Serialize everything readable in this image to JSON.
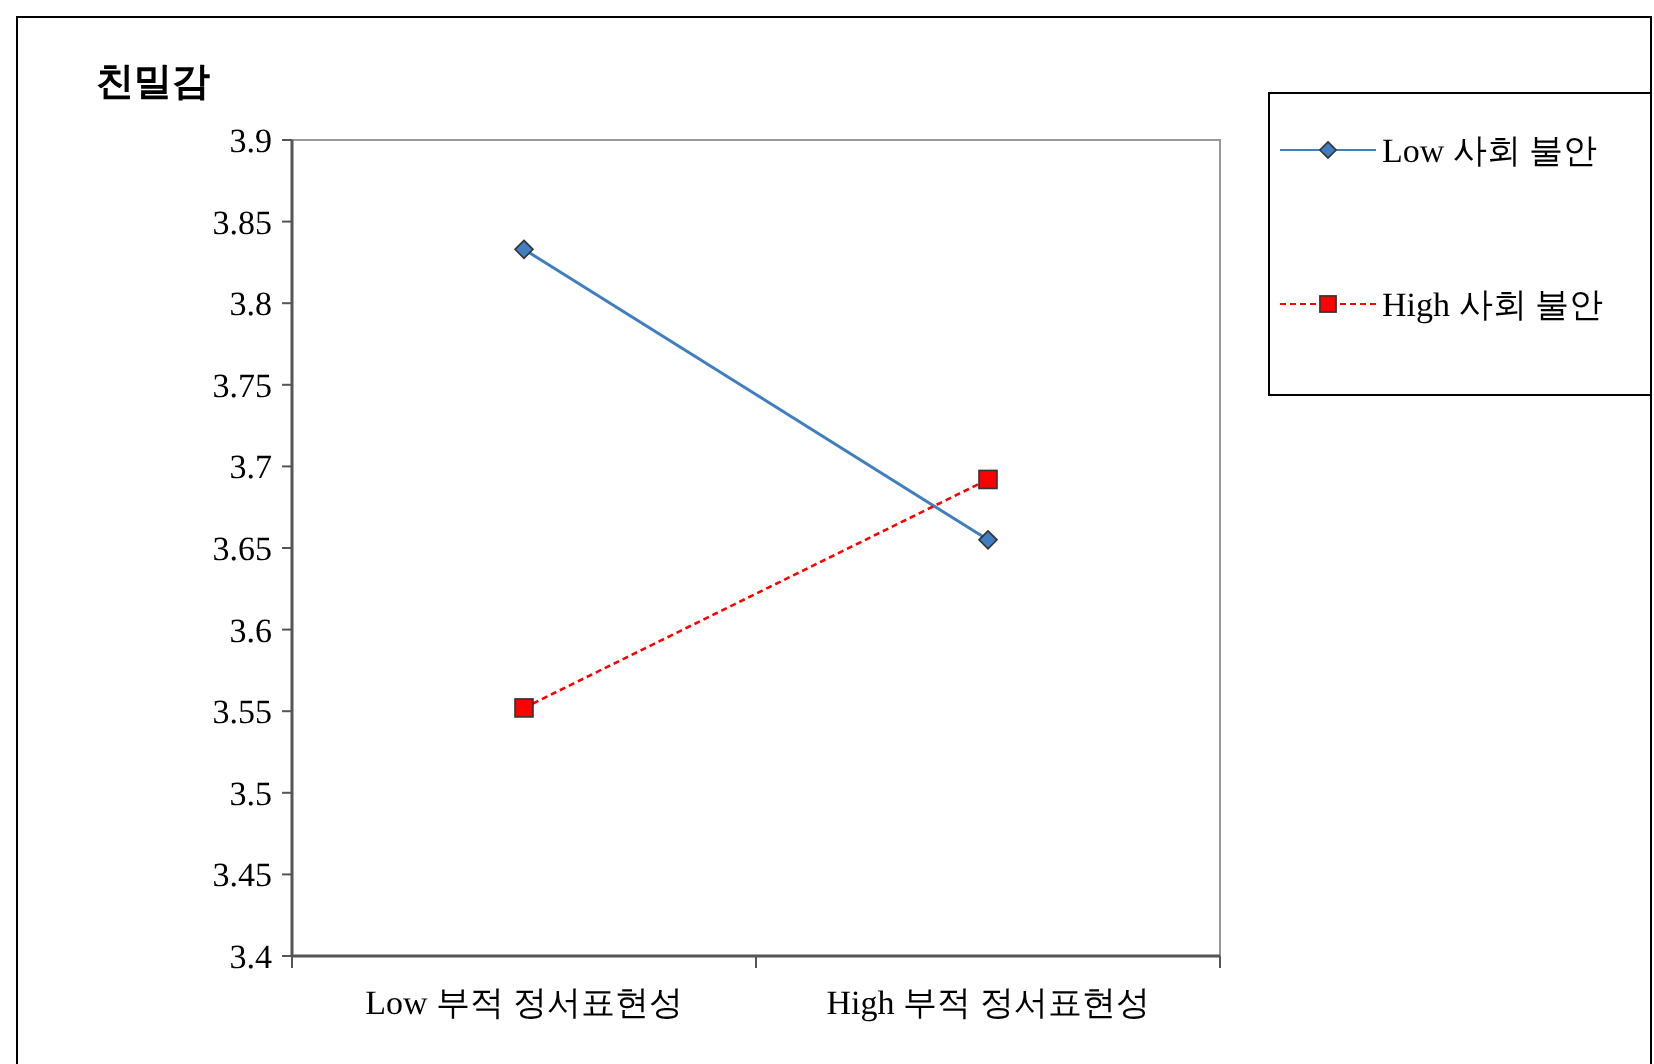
{
  "chart_data": {
    "type": "line",
    "ylabel": "친밀감",
    "categories": [
      "Low 부적 정서표현성",
      "High 부적 정서표현성"
    ],
    "series": [
      {
        "name": "Low 사회 불안",
        "color": "#3f7fc0",
        "marker": "diamond",
        "line_style": "solid",
        "values": [
          3.833,
          3.655
        ]
      },
      {
        "name": "High 사회 불안",
        "color": "#ff0000",
        "marker": "square",
        "line_style": "dashed",
        "values": [
          3.552,
          3.692
        ]
      }
    ],
    "ylim": [
      3.4,
      3.9
    ],
    "yticks": [
      3.4,
      3.45,
      3.5,
      3.55,
      3.6,
      3.65,
      3.7,
      3.75,
      3.8,
      3.85,
      3.9
    ],
    "grid": false,
    "legend": "top right"
  }
}
